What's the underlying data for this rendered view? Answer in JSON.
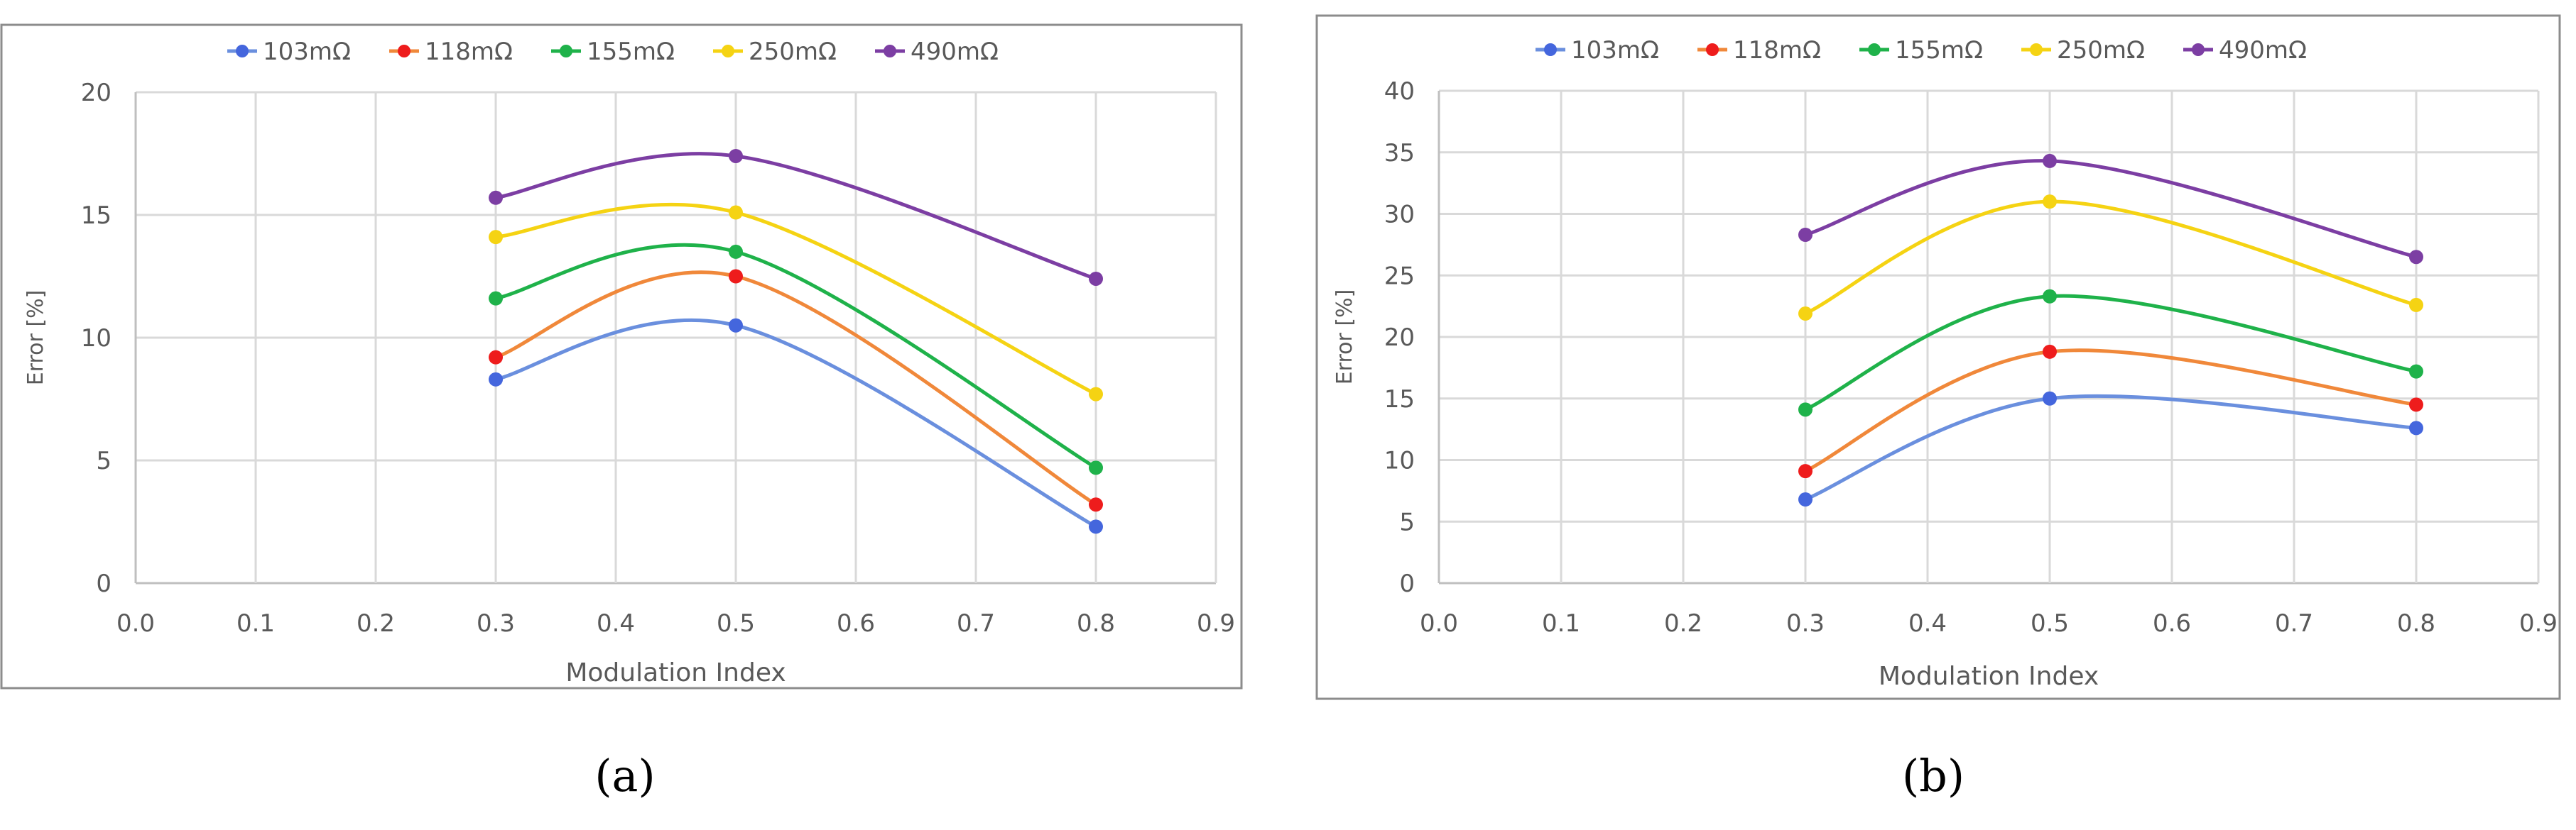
{
  "figure": {
    "captions": [
      "(a)",
      "(b)"
    ]
  },
  "chart_data": [
    {
      "type": "line",
      "panel": "a",
      "title": "",
      "xlabel": "Modulation Index",
      "ylabel": "Error [%]",
      "xlim": [
        0.0,
        0.9
      ],
      "ylim": [
        0,
        20
      ],
      "xticks": [
        "0.0",
        "0.1",
        "0.2",
        "0.3",
        "0.4",
        "0.5",
        "0.6",
        "0.7",
        "0.8",
        "0.9"
      ],
      "yticks": [
        "0",
        "5",
        "10",
        "15",
        "20"
      ],
      "grid": true,
      "legend_position": "top-center",
      "x": [
        0.3,
        0.5,
        0.8
      ],
      "series": [
        {
          "name": "103mΩ",
          "color": "#6a8fde",
          "marker_color": "#4466dd",
          "values": [
            8.3,
            10.5,
            2.3
          ]
        },
        {
          "name": "118mΩ",
          "color": "#f0883a",
          "marker_color": "#ee1c1c",
          "values": [
            9.2,
            12.5,
            3.2
          ]
        },
        {
          "name": "155mΩ",
          "color": "#1fb24a",
          "marker_color": "#1fb24a",
          "values": [
            11.6,
            13.5,
            4.7
          ]
        },
        {
          "name": "250mΩ",
          "color": "#f5d313",
          "marker_color": "#f5d313",
          "values": [
            14.1,
            15.1,
            7.7
          ]
        },
        {
          "name": "490mΩ",
          "color": "#7c3ea3",
          "marker_color": "#7c3ea3",
          "values": [
            15.7,
            17.4,
            12.4
          ]
        }
      ]
    },
    {
      "type": "line",
      "panel": "b",
      "title": "",
      "xlabel": "Modulation Index",
      "ylabel": "Error [%]",
      "xlim": [
        0.0,
        0.9
      ],
      "ylim": [
        0,
        40
      ],
      "xticks": [
        "0.0",
        "0.1",
        "0.2",
        "0.3",
        "0.4",
        "0.5",
        "0.6",
        "0.7",
        "0.8",
        "0.9"
      ],
      "yticks": [
        "0",
        "5",
        "10",
        "15",
        "20",
        "25",
        "30",
        "35",
        "40"
      ],
      "grid": true,
      "legend_position": "top-center",
      "x": [
        0.3,
        0.5,
        0.8
      ],
      "series": [
        {
          "name": "103mΩ",
          "color": "#6a8fde",
          "marker_color": "#4466dd",
          "values": [
            6.8,
            15.0,
            12.6
          ]
        },
        {
          "name": "118mΩ",
          "color": "#f0883a",
          "marker_color": "#ee1c1c",
          "values": [
            9.1,
            18.8,
            14.5
          ]
        },
        {
          "name": "155mΩ",
          "color": "#1fb24a",
          "marker_color": "#1fb24a",
          "values": [
            14.1,
            23.3,
            17.2
          ]
        },
        {
          "name": "250mΩ",
          "color": "#f5d313",
          "marker_color": "#f5d313",
          "values": [
            21.9,
            31.0,
            22.6
          ]
        },
        {
          "name": "490mΩ",
          "color": "#7c3ea3",
          "marker_color": "#7c3ea3",
          "values": [
            28.3,
            34.3,
            26.5
          ]
        }
      ]
    }
  ]
}
